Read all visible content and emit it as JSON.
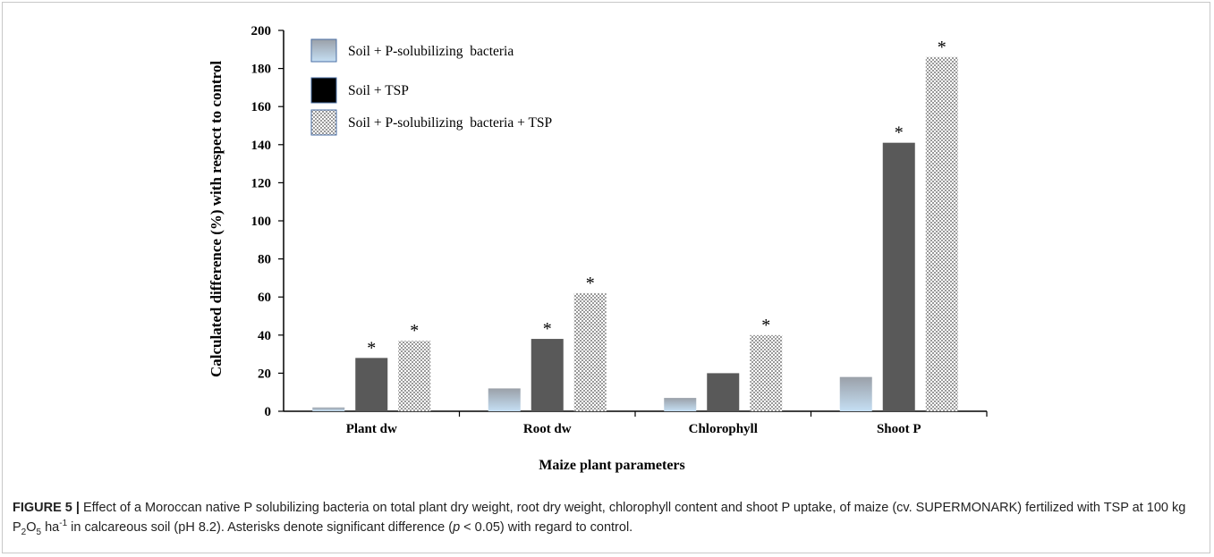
{
  "chart_data": {
    "type": "bar",
    "categories": [
      "Plant dw",
      "Root dw",
      "Chlorophyll",
      "Shoot P"
    ],
    "series": [
      {
        "name": "Soil + P-solubilizing  bacteria",
        "values": [
          2,
          12,
          7,
          18
        ],
        "significant": [
          false,
          false,
          false,
          false
        ]
      },
      {
        "name": "Soil + TSP",
        "values": [
          28,
          38,
          20,
          141
        ],
        "significant": [
          true,
          true,
          false,
          true
        ]
      },
      {
        "name": "Soil + P-solubilizing  bacteria + TSP",
        "values": [
          37,
          62,
          40,
          186
        ],
        "significant": [
          true,
          true,
          true,
          true
        ]
      }
    ],
    "xlabel": "Maize plant parameters",
    "ylabel": "Calculated difference (%) with respect to control",
    "ylim": [
      0,
      200
    ],
    "yticks": [
      0,
      20,
      40,
      60,
      80,
      100,
      120,
      140,
      160,
      180,
      200
    ],
    "significance_marker": "*",
    "legend_position": "top-left",
    "grid": false,
    "colors": {
      "series1_top": "#9aa0a8",
      "series1_bottom": "#c5dff4",
      "series2": "#595959",
      "series3_pattern": "#9a9a9a",
      "legend_border": "#4a6fa5"
    }
  },
  "caption": {
    "label": "FIGURE 5 |",
    "t1": " Effect of a Moroccan native P solubilizing bacteria on total plant dry weight, root dry weight, chlorophyll content and shoot P uptake, of maize (cv. SUPERMONARK) fertilized with TSP at 100 kg P",
    "sub1": "2",
    "t2": "O",
    "sub2": "5",
    "t3": " ha",
    "sup1": "-1",
    "t4": " in calcareous soil (pH 8.2). Asterisks denote significant difference (",
    "p": "p",
    "t5": " < 0.05) with regard to control."
  }
}
